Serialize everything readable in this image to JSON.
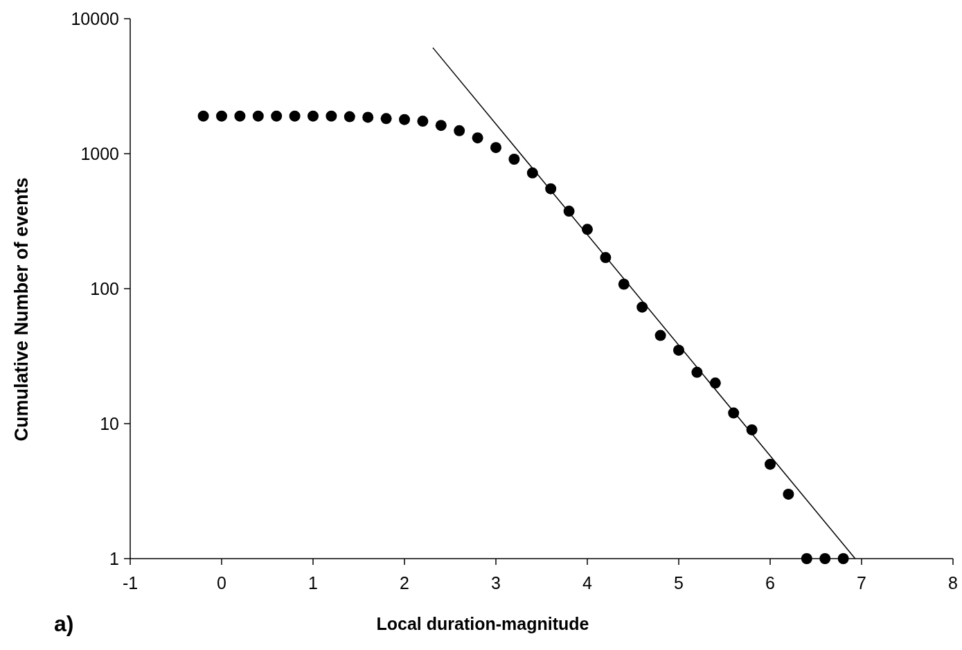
{
  "chart_data": {
    "type": "scatter",
    "xlabel": "Local duration-magnitude",
    "ylabel": "Cumulative Number of events",
    "annotations": [
      "a)"
    ],
    "log": "y",
    "xlim": [
      -1,
      8
    ],
    "xticks": [
      -1,
      0,
      1,
      2,
      3,
      4,
      5,
      6,
      7,
      8
    ],
    "ylim": [
      1,
      10000
    ],
    "yticks": [
      1,
      10,
      100,
      1000,
      10000
    ],
    "grid": false,
    "series": [
      {
        "marker": "circle",
        "color": "#000000",
        "x": [
          -0.2,
          0,
          0.2,
          0.4,
          0.6,
          0.8,
          1,
          1.2,
          1.4,
          1.6,
          1.8,
          2,
          2.2,
          2.4,
          2.6,
          2.8,
          3,
          3.2,
          3.4,
          3.6,
          3.8,
          4,
          4.2,
          4.4,
          4.6,
          4.8,
          5,
          5.2,
          5.4,
          5.6,
          5.8,
          6,
          6.2,
          6.4,
          6.6,
          6.8
        ],
        "values": [
          1900,
          1900,
          1900,
          1900,
          1900,
          1900,
          1900,
          1900,
          1880,
          1860,
          1820,
          1790,
          1740,
          1620,
          1480,
          1310,
          1110,
          910,
          720,
          550,
          375,
          275,
          170,
          108,
          73,
          45,
          35,
          24,
          20,
          12,
          9,
          5,
          3,
          1,
          1,
          1
        ]
      },
      {
        "type": "line",
        "marker": "none",
        "line_style": "solid",
        "color": "#000000",
        "x": [
          2.31,
          6.93
        ],
        "values": [
          6100,
          1
        ]
      }
    ]
  }
}
